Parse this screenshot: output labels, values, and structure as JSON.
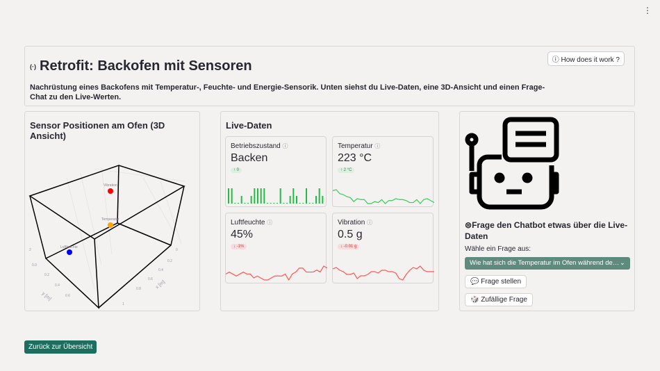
{
  "menu_icon": "kebab-menu-icon",
  "header": {
    "title": "Retrofit: Backofen mit Sensoren",
    "title_icon": "(·)",
    "description": "Nachrüstung eines Backofens mit Temperatur-, Feuchte- und Energie-Sensorik. Unten siehst du Live-Daten, eine 3D-Ansicht und einen Frage-Chat zu den Live-Werten.",
    "help_button": "How does it work ?"
  },
  "sensor_panel": {
    "title": "Sensor Positionen am Ofen (3D Ansicht)",
    "xlabel": "x [m]",
    "ylabel": "y [m]",
    "points": [
      {
        "name": "Vibration",
        "color": "#ff0000"
      },
      {
        "name": "Temperatur",
        "color": "#ffa500"
      },
      {
        "name": "Luftfeuchte",
        "color": "#0000ff"
      }
    ],
    "x_ticks": [
      "0",
      "0.2",
      "0.4",
      "0.6",
      "0.8",
      "1"
    ],
    "y_ticks": [
      "0.0",
      "0.2",
      "0.4",
      "0.6"
    ],
    "z_ticks": [
      "2"
    ]
  },
  "live": {
    "title": "Live-Daten",
    "metrics": [
      {
        "label": "Betriebszustand",
        "value": "Backen",
        "delta": "↑ 0",
        "direction": "up",
        "type": "bar",
        "color": "#22bb44",
        "series": [
          1,
          1,
          0,
          0,
          0.5,
          0,
          0,
          0.5,
          1,
          1,
          1,
          1,
          0,
          0,
          0,
          0,
          1,
          0,
          0,
          0.5,
          1,
          0.5,
          0,
          0,
          1,
          0,
          0,
          0.5,
          1,
          0.5
        ]
      },
      {
        "label": "Temperatur",
        "value": "223 °C",
        "delta": "↑ 2 °C",
        "direction": "up",
        "type": "line",
        "color": "#33cc55",
        "series": [
          231,
          232,
          228,
          227,
          225,
          224,
          220,
          223,
          222,
          222,
          218,
          218,
          220,
          219,
          222,
          218,
          221,
          221,
          223,
          222,
          222,
          221,
          219,
          219,
          222,
          218,
          222,
          223,
          221,
          219
        ]
      },
      {
        "label": "Luftfeuchte",
        "value": "45%",
        "delta": "↓ -1%",
        "direction": "down",
        "type": "line",
        "color": "#ff5555",
        "series": [
          44,
          45,
          44,
          43,
          44,
          45,
          44,
          44,
          42,
          43,
          42,
          41,
          41,
          42,
          43,
          43,
          43,
          44,
          41,
          44,
          45,
          47,
          47,
          45,
          45,
          45,
          46,
          45,
          48,
          47
        ]
      },
      {
        "label": "Vibration",
        "value": "0.5 g",
        "delta": "↓ -0.01 g",
        "direction": "down",
        "type": "line",
        "color": "#ff5555",
        "series": [
          0.52,
          0.53,
          0.51,
          0.5,
          0.48,
          0.48,
          0.49,
          0.45,
          0.47,
          0.47,
          0.48,
          0.5,
          0.5,
          0.49,
          0.51,
          0.51,
          0.5,
          0.5,
          0.49,
          0.45,
          0.44,
          0.48,
          0.51,
          0.53,
          0.52,
          0.54,
          0.51,
          0.5,
          0.5,
          0.5
        ]
      }
    ]
  },
  "chat": {
    "robot_icon": "robot-icon",
    "question_title": "Frage den Chatbot etwas über die Live-Daten",
    "select_label": "Wähle ein Frage aus:",
    "selected": "Wie hat sich die Temperatur im Ofen während de…",
    "ask_button": "Frage stellen",
    "random_button": "Zufällige Frage"
  },
  "back_button": "Zurück zur Übersicht"
}
